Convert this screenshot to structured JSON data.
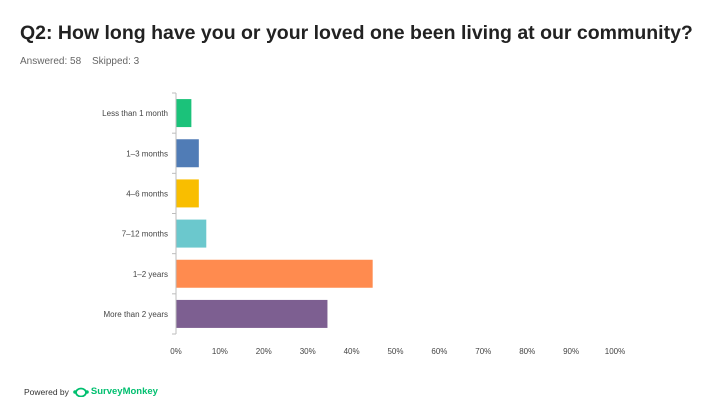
{
  "header": {
    "title": "Q2: How long have you or your loved one been living at our community?",
    "answered": "Answered: 58",
    "skipped": "Skipped: 3"
  },
  "footer": {
    "powered_by": "Powered by",
    "brand": "SurveyMonkey",
    "brand_color": "#00bf6f"
  },
  "chart_data": {
    "type": "bar",
    "orientation": "horizontal",
    "categories": [
      "Less than 1 month",
      "1–3 months",
      "4–6 months",
      "7–12 months",
      "1–2 years",
      "More than 2 years"
    ],
    "values": [
      3.5,
      5.2,
      5.2,
      6.9,
      44.8,
      34.5
    ],
    "colors": [
      "#1bc27a",
      "#507cb6",
      "#f9be00",
      "#6bc8cd",
      "#ff8b4f",
      "#7d5f91"
    ],
    "xticks": [
      "0%",
      "10%",
      "20%",
      "30%",
      "40%",
      "50%",
      "60%",
      "70%",
      "80%",
      "90%",
      "100%"
    ],
    "xlim": [
      0,
      100
    ],
    "grid": false
  }
}
